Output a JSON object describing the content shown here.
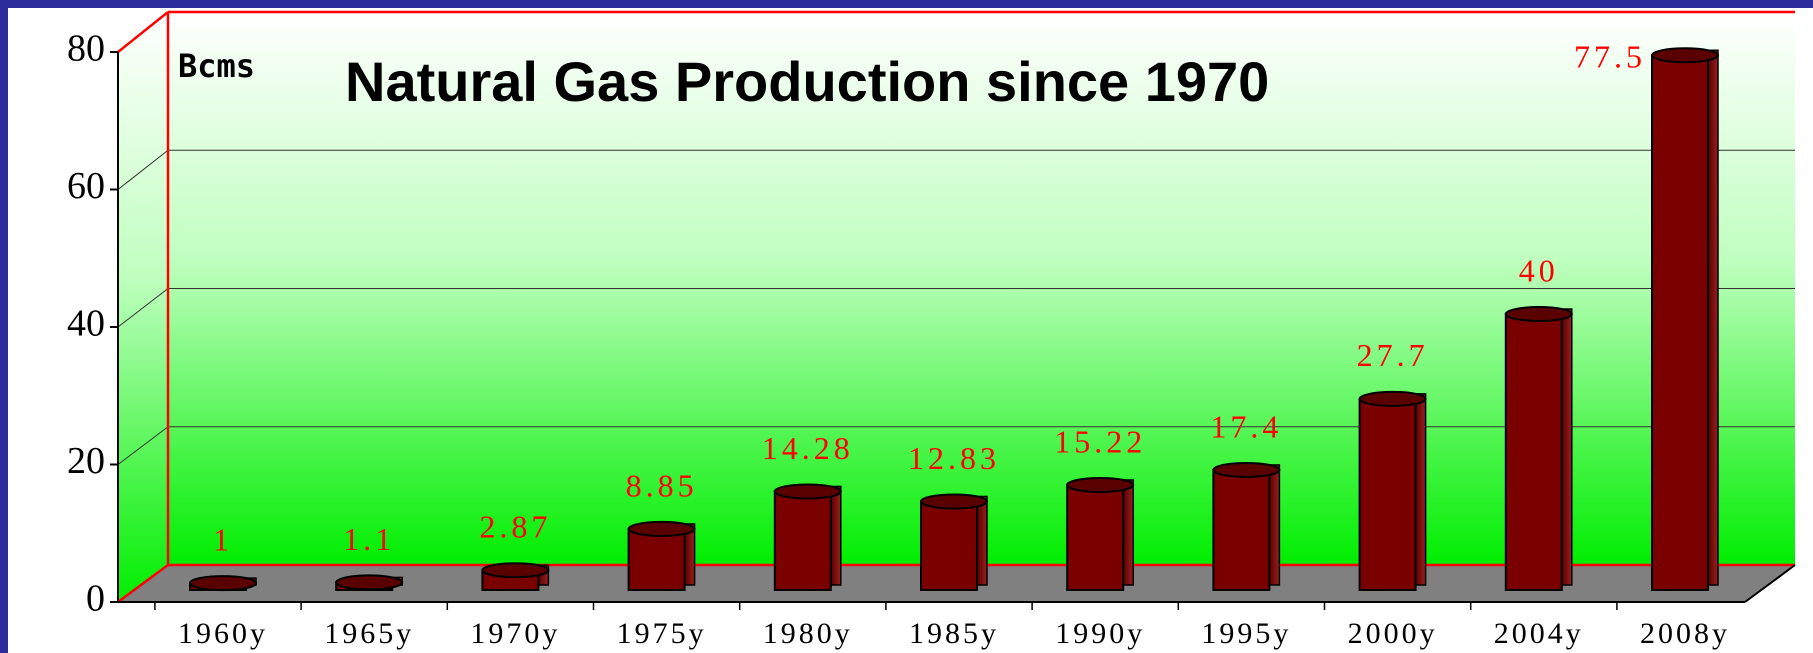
{
  "chart_data": {
    "type": "bar",
    "title": "Natural Gas Production since 1970",
    "y_label": "Bcms",
    "categories": [
      "1960y",
      "1965y",
      "1970y",
      "1975y",
      "1980y",
      "1985y",
      "1990y",
      "1995y",
      "2000y",
      "2004y",
      "2008y"
    ],
    "values": [
      1,
      1.1,
      2.87,
      8.85,
      14.28,
      12.83,
      15.22,
      17.4,
      27.7,
      40,
      77.5
    ],
    "color": "#7a0000",
    "ylim": [
      0,
      80
    ],
    "yticks": [
      0,
      20,
      40,
      60,
      80
    ],
    "grid": true
  }
}
